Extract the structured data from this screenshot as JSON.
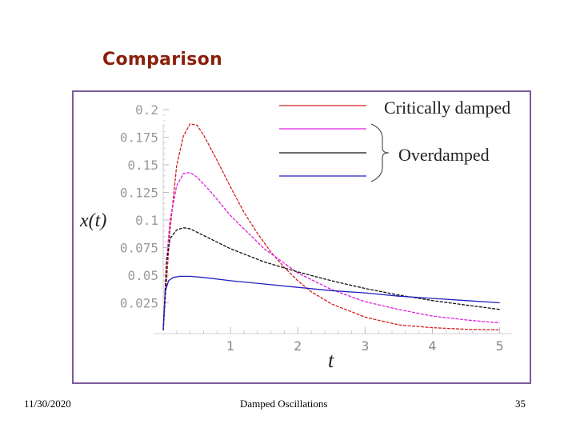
{
  "slide": {
    "title": "Comparison",
    "footer_date": "11/30/2020",
    "footer_center": "Damped Oscillations",
    "page_number": "35"
  },
  "chart_data": {
    "type": "line",
    "xlabel": "t",
    "ylabel": "x(t)",
    "xlim": [
      0,
      5.1
    ],
    "ylim": [
      0,
      0.2
    ],
    "x_ticks": [
      "1",
      "2",
      "3",
      "4",
      "5"
    ],
    "y_ticks": [
      "0.025",
      "0.05",
      "0.075",
      "0.1",
      "0.125",
      "0.15",
      "0.175",
      "0.2"
    ],
    "legend": {
      "entries": [
        "Critically damped",
        "Overdamped"
      ],
      "position": "top-right"
    },
    "series": [
      {
        "color": "#d02020",
        "dashed": true,
        "points": [
          [
            0,
            0
          ],
          [
            0.1,
            0.09
          ],
          [
            0.2,
            0.149
          ],
          [
            0.3,
            0.176
          ],
          [
            0.4,
            0.187
          ],
          [
            0.5,
            0.186
          ],
          [
            0.6,
            0.177
          ],
          [
            0.8,
            0.154
          ],
          [
            1.0,
            0.13
          ],
          [
            1.2,
            0.107
          ],
          [
            1.4,
            0.088
          ],
          [
            1.6,
            0.071
          ],
          [
            1.8,
            0.057
          ],
          [
            2.0,
            0.045
          ],
          [
            2.2,
            0.035
          ],
          [
            2.5,
            0.024
          ],
          [
            3.0,
            0.012
          ],
          [
            3.5,
            0.005
          ],
          [
            4.0,
            0.0025
          ],
          [
            4.5,
            0.001
          ],
          [
            5.0,
            0.0005
          ]
        ]
      },
      {
        "color": "#e020e0",
        "dashed": true,
        "points": [
          [
            0,
            0
          ],
          [
            0.05,
            0.063
          ],
          [
            0.1,
            0.099
          ],
          [
            0.2,
            0.131
          ],
          [
            0.3,
            0.142
          ],
          [
            0.4,
            0.143
          ],
          [
            0.5,
            0.139
          ],
          [
            0.7,
            0.126
          ],
          [
            1.0,
            0.104
          ],
          [
            1.5,
            0.074
          ],
          [
            2.0,
            0.052
          ],
          [
            2.5,
            0.037
          ],
          [
            3.0,
            0.026
          ],
          [
            3.5,
            0.019
          ],
          [
            4.0,
            0.013
          ],
          [
            4.5,
            0.0095
          ],
          [
            5.0,
            0.0068
          ]
        ]
      },
      {
        "color": "#101010",
        "dashed": true,
        "points": [
          [
            0,
            0
          ],
          [
            0.05,
            0.062
          ],
          [
            0.1,
            0.083
          ],
          [
            0.2,
            0.091
          ],
          [
            0.3,
            0.093
          ],
          [
            0.4,
            0.092
          ],
          [
            0.5,
            0.089
          ],
          [
            0.7,
            0.083
          ],
          [
            1.0,
            0.074
          ],
          [
            1.5,
            0.062
          ],
          [
            2.0,
            0.053
          ],
          [
            2.5,
            0.045
          ],
          [
            3.0,
            0.038
          ],
          [
            3.5,
            0.032
          ],
          [
            4.0,
            0.027
          ],
          [
            4.5,
            0.023
          ],
          [
            5.0,
            0.019
          ]
        ]
      },
      {
        "color": "#2020c0",
        "dashed": false,
        "points": [
          [
            0,
            0
          ],
          [
            0.03,
            0.035
          ],
          [
            0.08,
            0.045
          ],
          [
            0.15,
            0.048
          ],
          [
            0.25,
            0.049
          ],
          [
            0.4,
            0.049
          ],
          [
            0.6,
            0.048
          ],
          [
            1.0,
            0.045
          ],
          [
            1.5,
            0.042
          ],
          [
            2.0,
            0.039
          ],
          [
            2.5,
            0.036
          ],
          [
            3.0,
            0.034
          ],
          [
            3.5,
            0.031
          ],
          [
            4.0,
            0.029
          ],
          [
            4.5,
            0.027
          ],
          [
            5.0,
            0.025
          ]
        ]
      }
    ]
  }
}
